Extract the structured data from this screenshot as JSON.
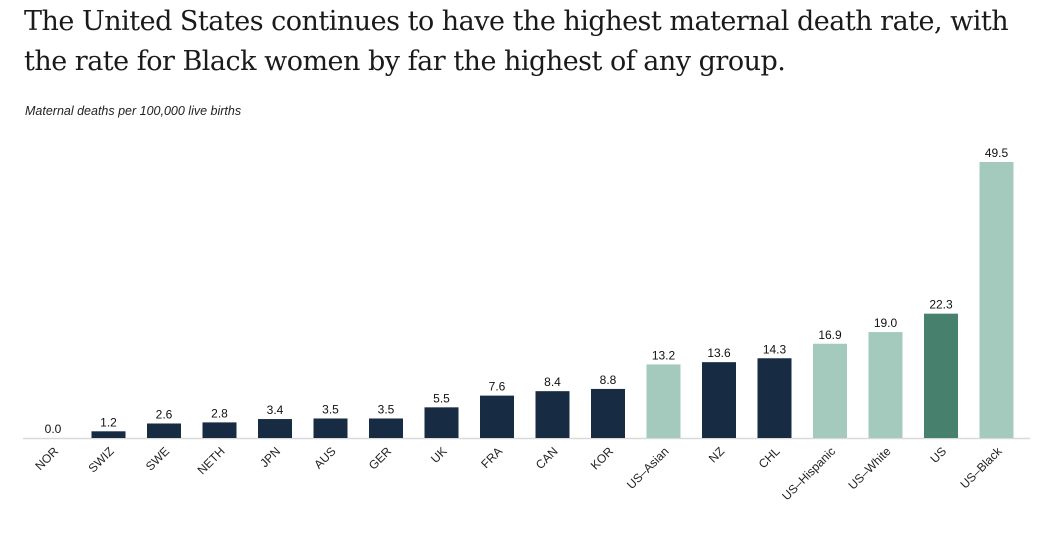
{
  "title": "The United States continues to have the highest maternal death rate, with the rate for Black women by far the highest of any group.",
  "chart_data": {
    "type": "bar",
    "title": "The United States continues to have the highest maternal death rate, with the rate for Black women by far the highest of any group.",
    "ylabel": "Maternal deaths per 100,000 live births",
    "xlabel": "",
    "ylim": [
      0,
      49.5
    ],
    "grid": false,
    "categories": [
      "NOR",
      "SWIZ",
      "SWE",
      "NETH",
      "JPN",
      "AUS",
      "GER",
      "UK",
      "FRA",
      "CAN",
      "KOR",
      "US–Asian",
      "NZ",
      "CHL",
      "US–Hispanic",
      "US–White",
      "US",
      "US–Black"
    ],
    "values": [
      0.0,
      1.2,
      2.6,
      2.8,
      3.4,
      3.5,
      3.5,
      5.5,
      7.6,
      8.4,
      8.8,
      13.2,
      13.6,
      14.3,
      16.9,
      19.0,
      22.3,
      49.5
    ],
    "labels": [
      "0.0",
      "1.2",
      "2.6",
      "2.8",
      "3.4",
      "3.5",
      "3.5",
      "5.5",
      "7.6",
      "8.4",
      "8.8",
      "13.2",
      "13.6",
      "14.3",
      "16.9",
      "19.0",
      "22.3",
      "49.5"
    ],
    "groups": [
      "country",
      "country",
      "country",
      "country",
      "country",
      "country",
      "country",
      "country",
      "country",
      "country",
      "country",
      "us-group",
      "country",
      "country",
      "us-group",
      "us-group",
      "us-total",
      "us-group"
    ],
    "colors": {
      "country": "#172b42",
      "us-group": "#a4cabd",
      "us-total": "#47816d",
      "axis": "#d9d9d9"
    }
  }
}
